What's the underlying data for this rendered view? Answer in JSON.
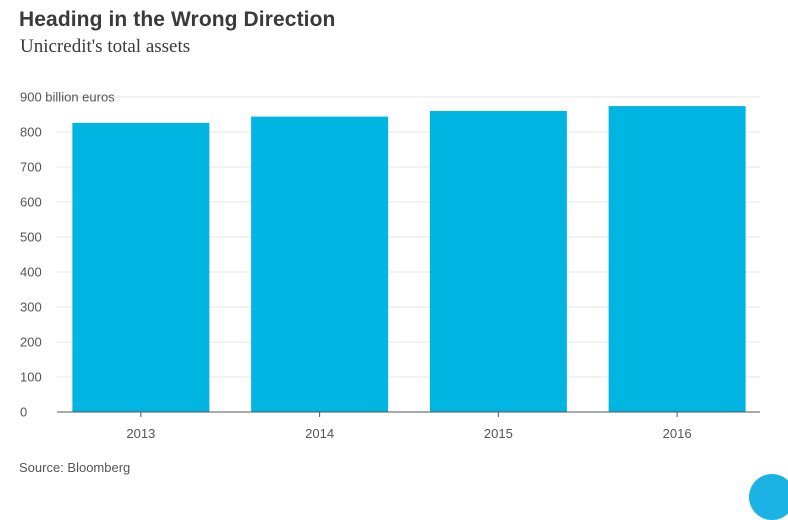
{
  "header": {
    "title": "Heading in the Wrong Direction",
    "subtitle": "Unicredit's total assets"
  },
  "footer": {
    "source": "Source: Bloomberg"
  },
  "colors": {
    "bar": "#00b5e2",
    "gridline": "#e6e6e6",
    "axis": "#555555",
    "text": "#3a3a3a",
    "accent_dot": "#1ab3e4"
  },
  "chart_data": {
    "type": "bar",
    "title": "Heading in the Wrong Direction",
    "subtitle": "Unicredit's total assets",
    "categories": [
      "2013",
      "2014",
      "2015",
      "2016"
    ],
    "values": [
      826,
      844,
      860,
      874
    ],
    "ylabel": "billion euros",
    "y_ticks": [
      0,
      100,
      200,
      300,
      400,
      500,
      600,
      700,
      800,
      900
    ],
    "y_tick_labels": [
      "0",
      "100",
      "200",
      "300",
      "400",
      "500",
      "600",
      "700",
      "800",
      "900 billion euros"
    ],
    "ylim": [
      0,
      900
    ],
    "grid": true,
    "legend": "none",
    "source": "Source: Bloomberg"
  }
}
